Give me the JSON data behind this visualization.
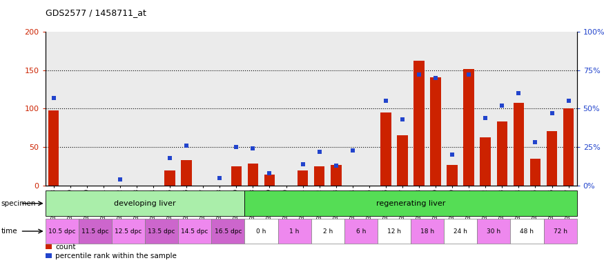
{
  "title": "GDS2577 / 1458711_at",
  "samples": [
    "GSM161128",
    "GSM161129",
    "GSM161130",
    "GSM161131",
    "GSM161132",
    "GSM161133",
    "GSM161134",
    "GSM161135",
    "GSM161136",
    "GSM161137",
    "GSM161138",
    "GSM161139",
    "GSM161108",
    "GSM161109",
    "GSM161110",
    "GSM161111",
    "GSM161112",
    "GSM161113",
    "GSM161114",
    "GSM161115",
    "GSM161116",
    "GSM161117",
    "GSM161118",
    "GSM161119",
    "GSM161120",
    "GSM161121",
    "GSM161122",
    "GSM161123",
    "GSM161124",
    "GSM161125",
    "GSM161126",
    "GSM161127"
  ],
  "counts": [
    98,
    0,
    0,
    0,
    0,
    0,
    0,
    20,
    33,
    0,
    0,
    25,
    29,
    14,
    0,
    20,
    25,
    27,
    0,
    0,
    95,
    65,
    162,
    141,
    27,
    152,
    63,
    83,
    108,
    35,
    71,
    100
  ],
  "percentile": [
    57,
    0,
    0,
    0,
    4,
    0,
    0,
    18,
    26,
    0,
    5,
    25,
    24,
    8,
    0,
    14,
    22,
    13,
    23,
    0,
    55,
    43,
    72,
    70,
    20,
    72,
    44,
    52,
    60,
    28,
    47,
    55
  ],
  "specimen_groups": [
    {
      "label": "developing liver",
      "start": 0,
      "end": 12,
      "color": "#aaeeaa"
    },
    {
      "label": "regenerating liver",
      "start": 12,
      "end": 32,
      "color": "#55dd55"
    }
  ],
  "time_groups": [
    {
      "label": "10.5 dpc",
      "start": 0,
      "end": 2,
      "color": "#ee88ee"
    },
    {
      "label": "11.5 dpc",
      "start": 2,
      "end": 4,
      "color": "#cc66cc"
    },
    {
      "label": "12.5 dpc",
      "start": 4,
      "end": 6,
      "color": "#ee88ee"
    },
    {
      "label": "13.5 dpc",
      "start": 6,
      "end": 8,
      "color": "#cc66cc"
    },
    {
      "label": "14.5 dpc",
      "start": 8,
      "end": 10,
      "color": "#ee88ee"
    },
    {
      "label": "16.5 dpc",
      "start": 10,
      "end": 12,
      "color": "#cc66cc"
    },
    {
      "label": "0 h",
      "start": 12,
      "end": 14,
      "color": "#ffffff"
    },
    {
      "label": "1 h",
      "start": 14,
      "end": 16,
      "color": "#ee88ee"
    },
    {
      "label": "2 h",
      "start": 16,
      "end": 18,
      "color": "#ffffff"
    },
    {
      "label": "6 h",
      "start": 18,
      "end": 20,
      "color": "#ee88ee"
    },
    {
      "label": "12 h",
      "start": 20,
      "end": 22,
      "color": "#ffffff"
    },
    {
      "label": "18 h",
      "start": 22,
      "end": 24,
      "color": "#ee88ee"
    },
    {
      "label": "24 h",
      "start": 24,
      "end": 26,
      "color": "#ffffff"
    },
    {
      "label": "30 h",
      "start": 26,
      "end": 28,
      "color": "#ee88ee"
    },
    {
      "label": "48 h",
      "start": 28,
      "end": 30,
      "color": "#ffffff"
    },
    {
      "label": "72 h",
      "start": 30,
      "end": 32,
      "color": "#ee88ee"
    }
  ],
  "bar_color": "#cc2200",
  "dot_color": "#2244cc",
  "bg_color": "#ebebeb",
  "ylim_left": [
    0,
    200
  ],
  "ylim_right": [
    0,
    100
  ],
  "yticks_left": [
    0,
    50,
    100,
    150,
    200
  ],
  "yticks_right": [
    0,
    25,
    50,
    75,
    100
  ],
  "ytick_labels_left": [
    "0",
    "50",
    "100",
    "150",
    "200"
  ],
  "ytick_labels_right": [
    "0%",
    "25%",
    "50%",
    "75%",
    "100%"
  ],
  "grid_values": [
    50,
    100,
    150
  ],
  "legend_count_label": "count",
  "legend_percentile_label": "percentile rank within the sample",
  "specimen_label": "specimen",
  "time_label": "time"
}
